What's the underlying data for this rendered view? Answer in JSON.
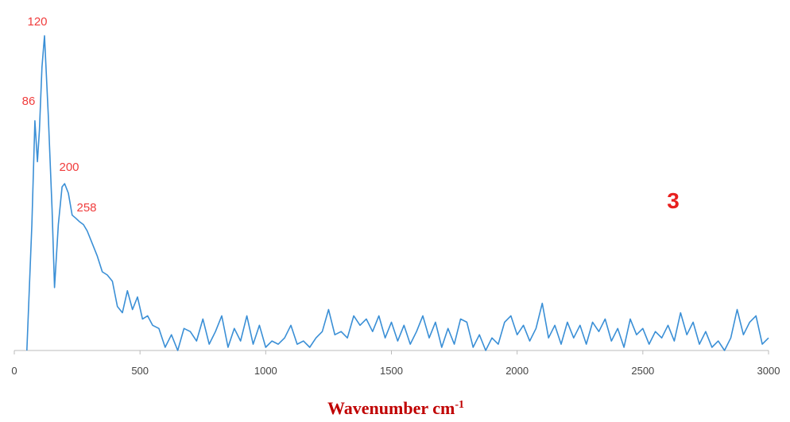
{
  "chart_data": {
    "type": "line",
    "x_label": {
      "text": "Wavenumber cm",
      "superscript": "-1"
    },
    "annotations": [
      "120",
      "86",
      "200",
      "258",
      "3"
    ],
    "xlim": [
      0,
      3000
    ],
    "xticks": [
      0,
      500,
      1000,
      1500,
      2000,
      2500,
      3000
    ],
    "ylim": [
      0,
      100
    ],
    "series": [
      {
        "color": "#3a8fd6",
        "x": [
          50,
          70,
          82,
          92,
          100,
          110,
          120,
          135,
          150,
          160,
          175,
          190,
          200,
          215,
          230,
          245,
          258,
          275,
          290,
          310,
          330,
          350,
          370,
          390,
          410,
          430,
          450,
          470,
          490,
          510,
          530,
          550,
          575,
          600,
          625,
          650,
          675,
          700,
          725,
          750,
          775,
          800,
          825,
          850,
          875,
          900,
          925,
          950,
          975,
          1000,
          1025,
          1050,
          1075,
          1100,
          1125,
          1150,
          1175,
          1200,
          1225,
          1250,
          1275,
          1300,
          1325,
          1350,
          1375,
          1400,
          1425,
          1450,
          1475,
          1500,
          1525,
          1550,
          1575,
          1600,
          1625,
          1650,
          1675,
          1700,
          1725,
          1750,
          1775,
          1800,
          1825,
          1850,
          1875,
          1900,
          1925,
          1950,
          1975,
          2000,
          2025,
          2050,
          2075,
          2100,
          2125,
          2150,
          2175,
          2200,
          2225,
          2250,
          2275,
          2300,
          2325,
          2350,
          2375,
          2400,
          2425,
          2450,
          2475,
          2500,
          2525,
          2550,
          2575,
          2600,
          2625,
          2650,
          2675,
          2700,
          2725,
          2750,
          2775,
          2800,
          2825,
          2850,
          2875,
          2900,
          2925,
          2950,
          2975,
          3000
        ],
        "values": [
          0,
          40,
          73,
          60,
          70,
          90,
          100,
          75,
          45,
          20,
          40,
          52,
          53,
          50,
          43,
          42,
          41,
          40,
          38,
          34,
          30,
          25,
          24,
          22,
          14,
          12,
          19,
          13,
          17,
          10,
          11,
          8,
          7,
          1,
          5,
          0,
          7,
          6,
          3,
          10,
          2,
          6,
          11,
          1,
          7,
          3,
          11,
          2,
          8,
          1,
          3,
          2,
          4,
          8,
          2,
          3,
          1,
          4,
          6,
          13,
          5,
          6,
          4,
          11,
          8,
          10,
          6,
          11,
          4,
          9,
          3,
          8,
          2,
          6,
          11,
          4,
          9,
          1,
          7,
          2,
          10,
          9,
          1,
          5,
          0,
          4,
          2,
          9,
          11,
          5,
          8,
          3,
          7,
          15,
          4,
          8,
          2,
          9,
          4,
          8,
          2,
          9,
          6,
          10,
          3,
          7,
          1,
          10,
          5,
          7,
          2,
          6,
          4,
          8,
          3,
          12,
          5,
          9,
          2,
          6,
          1,
          3,
          0,
          4,
          13,
          5,
          9,
          11,
          2,
          4
        ]
      }
    ]
  }
}
